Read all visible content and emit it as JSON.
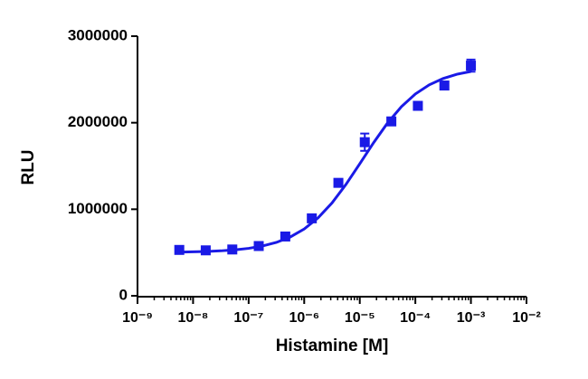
{
  "chart_data": {
    "type": "scatter",
    "xlabel": "Histamine [M]",
    "ylabel": "RLU",
    "xscale": "log",
    "xlim": [
      1e-09,
      0.01
    ],
    "xticks": [
      {
        "value": 1e-09,
        "label": "10⁻⁹"
      },
      {
        "value": 1e-08,
        "label": "10⁻⁸"
      },
      {
        "value": 1e-07,
        "label": "10⁻⁷"
      },
      {
        "value": 1e-06,
        "label": "10⁻⁶"
      },
      {
        "value": 1e-05,
        "label": "10⁻⁵"
      },
      {
        "value": 0.0001,
        "label": "10⁻⁴"
      },
      {
        "value": 0.001,
        "label": "10⁻³"
      },
      {
        "value": 0.01,
        "label": "10⁻²"
      }
    ],
    "ylim": [
      0,
      3000000
    ],
    "yticks": [
      0,
      1000000,
      2000000,
      3000000
    ],
    "minor_ticks": true,
    "series": [
      {
        "mode": "markers",
        "color": "#1a1ae6",
        "x": [
          5.65e-09,
          1.69e-08,
          5.08e-08,
          1.52e-07,
          4.57e-07,
          1.37e-06,
          4.12e-06,
          1.23e-05,
          3.7e-05,
          0.000111,
          0.000333,
          0.001
        ],
        "values": [
          530000,
          525000,
          535000,
          575000,
          685000,
          895000,
          1305000,
          1775000,
          2015000,
          2195000,
          2430000,
          2660000
        ],
        "errors": [
          20000,
          20000,
          20000,
          20000,
          20000,
          20000,
          25000,
          100000,
          20000,
          20000,
          40000,
          70000
        ]
      },
      {
        "mode": "line",
        "color": "#1a1ae6",
        "x": [
          5.62e-09,
          1e-08,
          1.78e-08,
          3.16e-08,
          5.62e-08,
          1e-07,
          1.78e-07,
          3.16e-07,
          5.62e-07,
          1e-06,
          1.78e-06,
          3.16e-06,
          5.62e-06,
          1e-05,
          1.78e-05,
          3.16e-05,
          5.62e-05,
          0.0001,
          0.000178,
          0.000316,
          0.000562,
          0.001
        ],
        "values": [
          504900,
          507800,
          512300,
          519400,
          530600,
          548200,
          575300,
          617000,
          679800,
          771500,
          900700,
          1072700,
          1285200,
          1525800,
          1770700,
          1996700,
          2185800,
          2331700,
          2437600,
          2510800,
          2560000,
          2592400
        ]
      }
    ]
  }
}
